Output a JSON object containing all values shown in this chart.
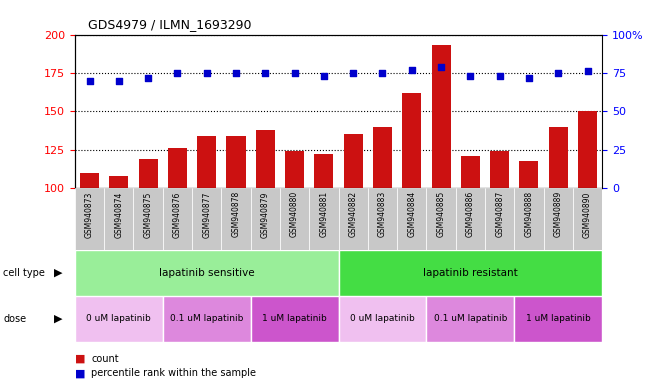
{
  "title": "GDS4979 / ILMN_1693290",
  "samples": [
    "GSM940873",
    "GSM940874",
    "GSM940875",
    "GSM940876",
    "GSM940877",
    "GSM940878",
    "GSM940879",
    "GSM940880",
    "GSM940881",
    "GSM940882",
    "GSM940883",
    "GSM940884",
    "GSM940885",
    "GSM940886",
    "GSM940887",
    "GSM940888",
    "GSM940889",
    "GSM940890"
  ],
  "bar_values": [
    110,
    108,
    119,
    126,
    134,
    134,
    138,
    124,
    122,
    135,
    140,
    162,
    193,
    121,
    124,
    118,
    140,
    150
  ],
  "dot_values": [
    70,
    70,
    72,
    75,
    75,
    75,
    75,
    75,
    73,
    75,
    75,
    77,
    79,
    73,
    73,
    72,
    75,
    76
  ],
  "bar_color": "#cc1111",
  "dot_color": "#0000cc",
  "ylim_left": [
    100,
    200
  ],
  "ylim_right": [
    0,
    100
  ],
  "yticks_left": [
    100,
    125,
    150,
    175,
    200
  ],
  "yticks_right": [
    0,
    25,
    50,
    75,
    100
  ],
  "cell_type_groups": [
    {
      "label": "lapatinib sensitive",
      "start": 0,
      "end": 9,
      "color": "#99ee99"
    },
    {
      "label": "lapatinib resistant",
      "start": 9,
      "end": 18,
      "color": "#44dd44"
    }
  ],
  "dose_groups": [
    {
      "label": "0 uM lapatinib",
      "start": 0,
      "end": 3,
      "color": "#f0c0f0"
    },
    {
      "label": "0.1 uM lapatinib",
      "start": 3,
      "end": 6,
      "color": "#dd88dd"
    },
    {
      "label": "1 uM lapatinib",
      "start": 6,
      "end": 9,
      "color": "#cc55cc"
    },
    {
      "label": "0 uM lapatinib",
      "start": 9,
      "end": 12,
      "color": "#f0c0f0"
    },
    {
      "label": "0.1 uM lapatinib",
      "start": 12,
      "end": 15,
      "color": "#dd88dd"
    },
    {
      "label": "1 uM lapatinib",
      "start": 15,
      "end": 18,
      "color": "#cc55cc"
    }
  ],
  "sample_bg_color": "#c8c8c8",
  "fig_width": 6.51,
  "fig_height": 3.84
}
